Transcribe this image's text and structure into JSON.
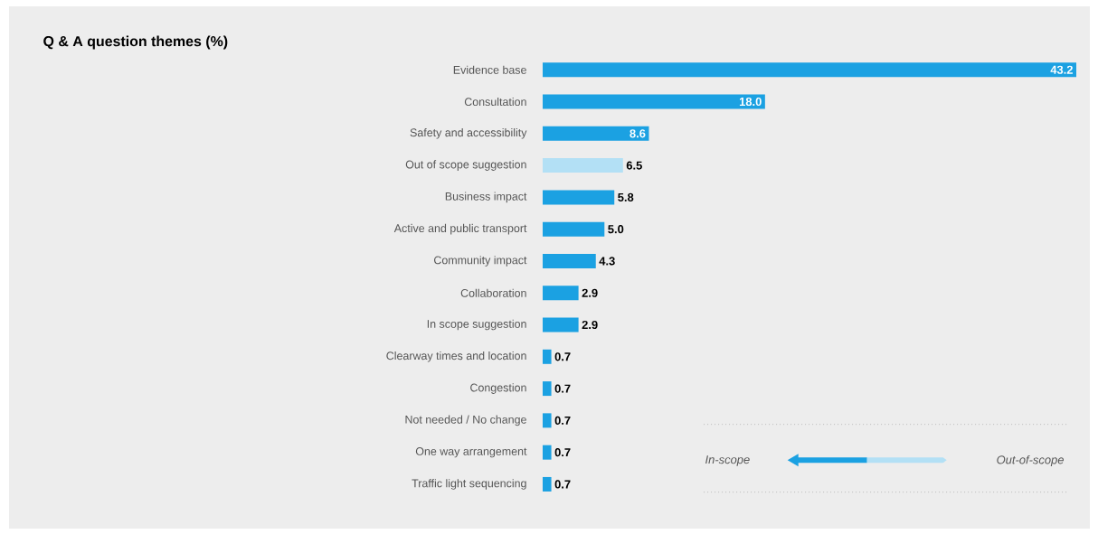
{
  "chart_data": {
    "type": "bar",
    "orientation": "horizontal",
    "title": "Q & A question themes (%)",
    "categories": [
      "Evidence base",
      "Consultation",
      "Safety and accessibility",
      "Out of scope suggestion",
      "Business impact",
      "Active and public transport",
      "Community impact",
      "Collaboration",
      "In scope suggestion",
      "Clearway times and location",
      "Congestion",
      "Not needed / No change",
      "One way arrangement",
      "Traffic light sequencing"
    ],
    "values": [
      43.2,
      18.0,
      8.6,
      6.5,
      5.8,
      5.0,
      4.3,
      2.9,
      2.9,
      0.7,
      0.7,
      0.7,
      0.7,
      0.7
    ],
    "colors": [
      "#1ba1e2",
      "#1ba1e2",
      "#1ba1e2",
      "#b3e0f5",
      "#1ba1e2",
      "#1ba1e2",
      "#1ba1e2",
      "#1ba1e2",
      "#1ba1e2",
      "#1ba1e2",
      "#1ba1e2",
      "#1ba1e2",
      "#1ba1e2",
      "#1ba1e2"
    ],
    "value_labels": [
      "43.2",
      "18.0",
      "8.6",
      "6.5",
      "5.8",
      "5.0",
      "4.3",
      "2.9",
      "2.9",
      "0.7",
      "0.7",
      "0.7",
      "0.7",
      "0.7"
    ],
    "annotations": [
      "In-scope",
      "Out-of-scope"
    ]
  }
}
